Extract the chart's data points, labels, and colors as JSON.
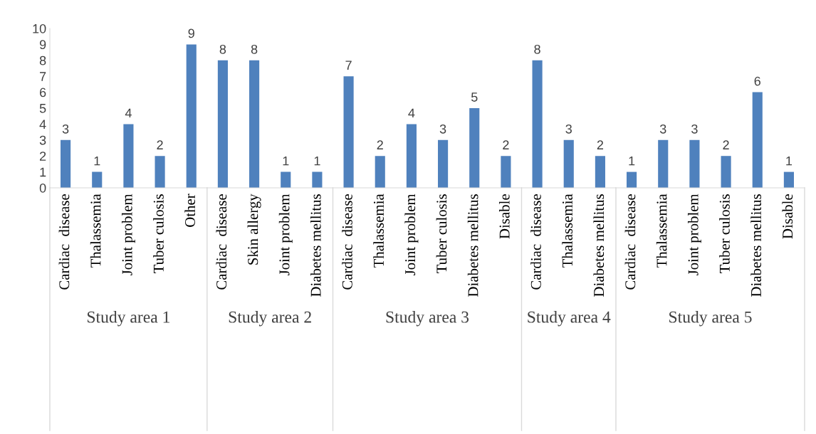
{
  "chart_data": [
    {
      "type": "bar",
      "xlabel": "Study area 1",
      "categories": [
        "Cardiac  disease",
        "Thalassemia",
        "Joint problem",
        "Tuber culosis",
        "Other"
      ],
      "values": [
        3,
        1,
        4,
        2,
        9
      ],
      "color": "#4f81bd",
      "ylim": [
        0,
        10
      ],
      "yticks": [
        0,
        1,
        2,
        3,
        4,
        5,
        6,
        7,
        8,
        9,
        10
      ],
      "data_labels": true,
      "grid": false,
      "legend": false
    },
    {
      "type": "bar",
      "xlabel": "Study area 2",
      "categories": [
        "Cardiac  disease",
        "Skin allergy",
        "Joint problem",
        "Diabetes mellitus"
      ],
      "values": [
        8,
        8,
        1,
        1
      ],
      "color": "#4f81bd",
      "ylim": [
        0,
        10
      ],
      "tick_labels": "x",
      "data_labels": true,
      "grid": false,
      "legend": false
    },
    {
      "type": "bar",
      "xlabel": "Study area 3",
      "categories": [
        "Cardiac  disease",
        "Thalassemia",
        "Joint problem",
        "Tuber culosis",
        "Diabetes mellitus",
        "Disable"
      ],
      "values": [
        7,
        2,
        4,
        3,
        5,
        2
      ],
      "color": "#4f81bd",
      "ylim": [
        0,
        10
      ],
      "tick_labels": "x",
      "data_labels": true,
      "grid": false,
      "legend": false
    },
    {
      "type": "bar",
      "xlabel": "Study area 4",
      "categories": [
        "Cardiac  disease",
        "Thalassemia",
        "Diabetes mellitus"
      ],
      "values": [
        8,
        3,
        2
      ],
      "color": "#4f81bd",
      "ylim": [
        0,
        10
      ],
      "tick_labels": "x",
      "data_labels": true,
      "grid": false,
      "legend": false
    },
    {
      "type": "bar",
      "xlabel": "Study area 5",
      "categories": [
        "Cardiac  disease",
        "Thalassemia",
        "Joint problem",
        "Tuber culosis",
        "Diabetes mellitus",
        "Disable"
      ],
      "values": [
        1,
        3,
        3,
        2,
        6,
        1
      ],
      "color": "#4f81bd",
      "ylim": [
        0,
        10
      ],
      "tick_labels": "x",
      "data_labels": true,
      "grid": false,
      "legend": false
    }
  ]
}
